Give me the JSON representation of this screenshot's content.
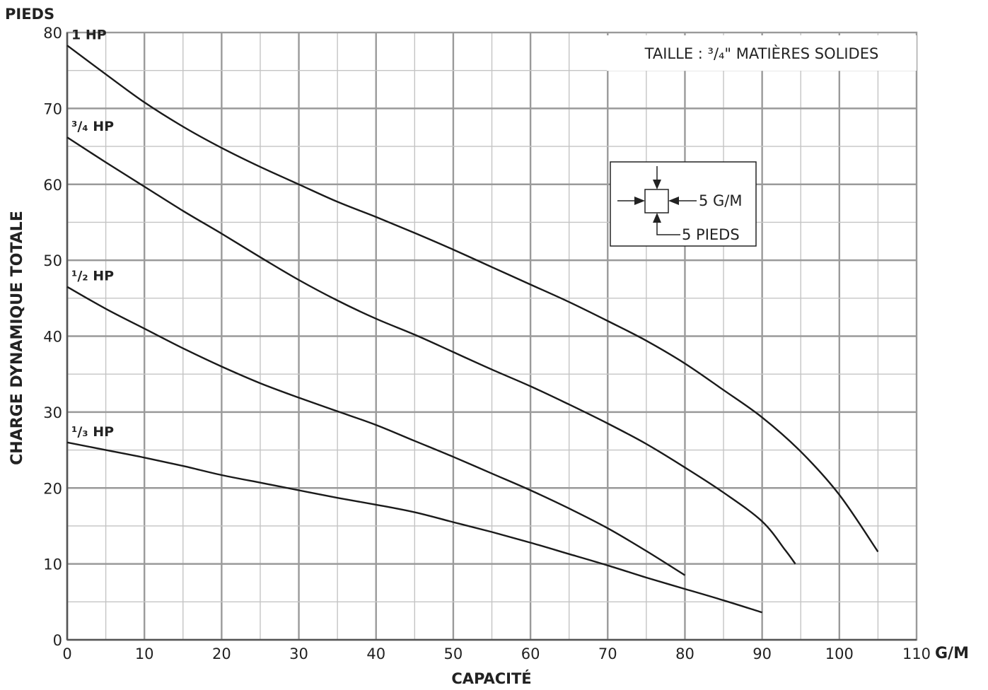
{
  "chart_data": {
    "type": "line",
    "y_unit_label": "PIEDS",
    "ylabel": "CHARGE DYNAMIQUE TOTALE",
    "xlabel": "CAPACITÉ",
    "x_unit_label": "G/M",
    "annotation": "TAILLE : ³/₄\" MATIÈRES SOLIDES",
    "xlim": [
      0,
      110
    ],
    "ylim": [
      0,
      80
    ],
    "x_ticks": [
      0,
      10,
      20,
      30,
      40,
      50,
      60,
      70,
      80,
      90,
      100,
      110
    ],
    "y_ticks": [
      0,
      10,
      20,
      30,
      40,
      50,
      60,
      70,
      80
    ],
    "grid": true,
    "grid_minor_x": 5,
    "grid_minor_y": 5,
    "legend_box": {
      "flow_label": "5 G/M",
      "head_label": "5 PIEDS",
      "cell_x": 5,
      "cell_y": 5
    },
    "series": [
      {
        "name": "1 HP",
        "points": [
          [
            0,
            78.3
          ],
          [
            5,
            74.5
          ],
          [
            10,
            70.8
          ],
          [
            15,
            67.6
          ],
          [
            20,
            64.8
          ],
          [
            25,
            62.3
          ],
          [
            30,
            60.0
          ],
          [
            35,
            57.7
          ],
          [
            40,
            55.7
          ],
          [
            45,
            53.6
          ],
          [
            50,
            51.4
          ],
          [
            55,
            49.1
          ],
          [
            60,
            46.8
          ],
          [
            65,
            44.5
          ],
          [
            70,
            42.0
          ],
          [
            75,
            39.4
          ],
          [
            80,
            36.4
          ],
          [
            85,
            32.9
          ],
          [
            90,
            29.3
          ],
          [
            95,
            24.8
          ],
          [
            100,
            19.1
          ],
          [
            105,
            11.6
          ]
        ]
      },
      {
        "name": "³/₄ HP",
        "points": [
          [
            0,
            66.2
          ],
          [
            5,
            62.9
          ],
          [
            10,
            59.7
          ],
          [
            15,
            56.5
          ],
          [
            20,
            53.5
          ],
          [
            25,
            50.4
          ],
          [
            30,
            47.4
          ],
          [
            35,
            44.7
          ],
          [
            40,
            42.3
          ],
          [
            45,
            40.2
          ],
          [
            50,
            37.9
          ],
          [
            55,
            35.6
          ],
          [
            60,
            33.4
          ],
          [
            65,
            31.0
          ],
          [
            70,
            28.5
          ],
          [
            75,
            25.8
          ],
          [
            80,
            22.7
          ],
          [
            85,
            19.4
          ],
          [
            90,
            15.6
          ],
          [
            93,
            11.8
          ],
          [
            94.3,
            10.0
          ]
        ]
      },
      {
        "name": "¹/₂ HP",
        "points": [
          [
            0,
            46.5
          ],
          [
            5,
            43.6
          ],
          [
            10,
            41.0
          ],
          [
            15,
            38.4
          ],
          [
            20,
            36.0
          ],
          [
            25,
            33.8
          ],
          [
            30,
            31.9
          ],
          [
            35,
            30.1
          ],
          [
            40,
            28.3
          ],
          [
            45,
            26.2
          ],
          [
            50,
            24.1
          ],
          [
            55,
            21.9
          ],
          [
            60,
            19.7
          ],
          [
            65,
            17.3
          ],
          [
            70,
            14.7
          ],
          [
            75,
            11.7
          ],
          [
            80,
            8.5
          ]
        ]
      },
      {
        "name": "¹/₃ HP",
        "points": [
          [
            0,
            26.0
          ],
          [
            5,
            25.0
          ],
          [
            10,
            24.0
          ],
          [
            15,
            22.9
          ],
          [
            20,
            21.7
          ],
          [
            25,
            20.7
          ],
          [
            30,
            19.7
          ],
          [
            35,
            18.7
          ],
          [
            40,
            17.8
          ],
          [
            45,
            16.8
          ],
          [
            50,
            15.5
          ],
          [
            55,
            14.2
          ],
          [
            60,
            12.8
          ],
          [
            65,
            11.3
          ],
          [
            70,
            9.8
          ],
          [
            75,
            8.2
          ],
          [
            80,
            6.7
          ],
          [
            85,
            5.2
          ],
          [
            90,
            3.6
          ]
        ]
      }
    ]
  }
}
